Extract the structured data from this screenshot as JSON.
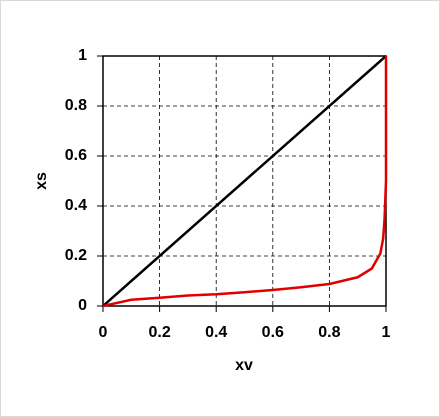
{
  "chart_data": {
    "type": "line",
    "xlabel": "xv",
    "ylabel": "xs",
    "xlim": [
      0,
      1
    ],
    "ylim": [
      0,
      1
    ],
    "xticks": [
      0,
      0.2,
      0.4,
      0.6,
      0.8,
      1
    ],
    "yticks": [
      0,
      0.2,
      0.4,
      0.6,
      0.8,
      1
    ],
    "grid": true,
    "series": [
      {
        "color": "#000000",
        "x": [
          0,
          1
        ],
        "values": [
          0,
          1
        ]
      },
      {
        "color": "#e00000",
        "x": [
          0,
          0.1,
          0.2,
          0.3,
          0.4,
          0.5,
          0.6,
          0.7,
          0.8,
          0.9,
          0.95,
          0.98,
          0.99,
          0.995,
          1,
          1
        ],
        "values": [
          0,
          0.025,
          0.033,
          0.042,
          0.047,
          0.055,
          0.064,
          0.075,
          0.088,
          0.115,
          0.15,
          0.21,
          0.27,
          0.35,
          0.5,
          1
        ]
      }
    ]
  }
}
